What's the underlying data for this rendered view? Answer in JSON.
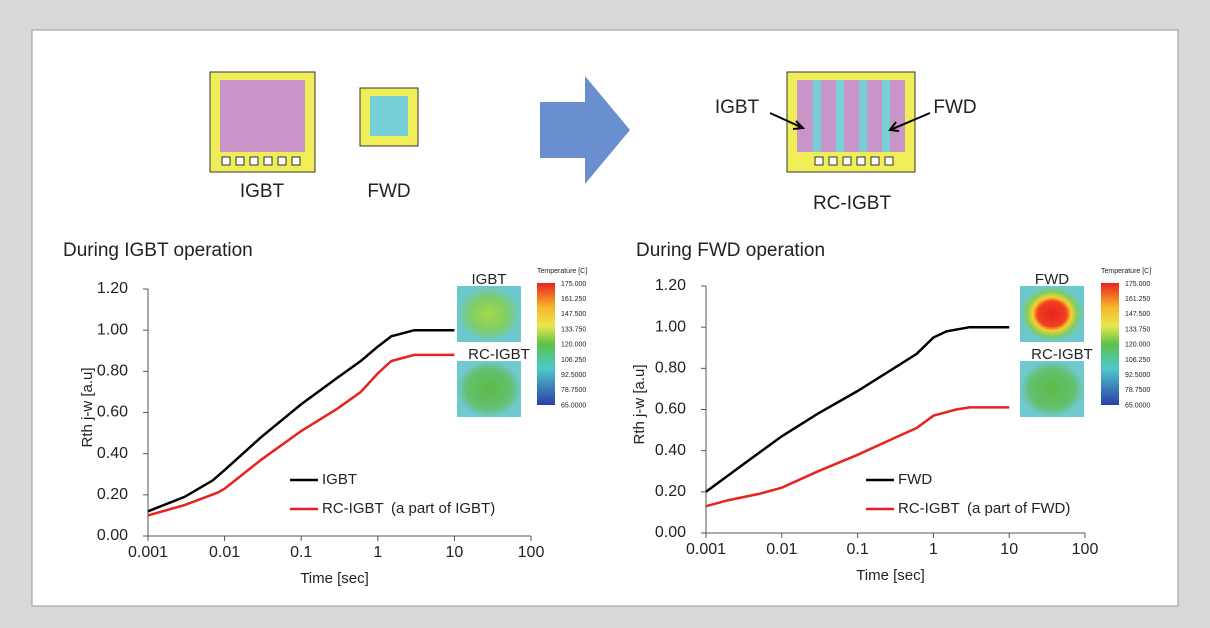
{
  "diagram": {
    "chips": [
      "IGBT",
      "FWD",
      "RC-IGBT"
    ],
    "pointers": [
      "IGBT",
      "FWD"
    ]
  },
  "colorbar": {
    "title": "Temperature [C]",
    "labels": [
      "175.000",
      "161.250",
      "147.500",
      "133.750",
      "120.000",
      "106.250",
      "92.5000",
      "78.7500",
      "65.0000"
    ]
  },
  "chart_data": [
    {
      "type": "line",
      "title": "During IGBT operation",
      "x_label": "Time [sec]",
      "y_label": "Rth j-w [a.u]",
      "log_x": true,
      "xlim": [
        0.001,
        100
      ],
      "xticks": [
        0.001,
        0.01,
        0.1,
        1,
        10,
        100
      ],
      "ylim": [
        0,
        1.2
      ],
      "yticks": [
        {
          "value": 0,
          "label": "0.00"
        },
        {
          "value": 0.2,
          "label": "0.20"
        },
        {
          "value": 0.4,
          "label": "0.40"
        },
        {
          "value": 0.6,
          "label": "0.60"
        },
        {
          "value": 0.8,
          "label": "0.80"
        },
        {
          "value": 1,
          "label": "1.00"
        },
        {
          "value": 1.2,
          "label": "1.20"
        }
      ],
      "thumbnails": [
        "IGBT",
        "RC-IGBT"
      ],
      "annotation": "(a part of IGBT)",
      "series": [
        {
          "name": "IGBT",
          "color": "#000000",
          "x": [
            0.001,
            0.003,
            0.007,
            0.01,
            0.03,
            0.1,
            0.3,
            0.6,
            1,
            1.5,
            3,
            10
          ],
          "values": [
            0.12,
            0.19,
            0.27,
            0.32,
            0.48,
            0.64,
            0.77,
            0.85,
            0.92,
            0.97,
            1.0,
            1.0
          ]
        },
        {
          "name": "RC-IGBT",
          "color": "#e8231f",
          "x": [
            0.001,
            0.003,
            0.008,
            0.01,
            0.03,
            0.1,
            0.3,
            0.6,
            1,
            1.5,
            3,
            10
          ],
          "values": [
            0.1,
            0.15,
            0.21,
            0.23,
            0.37,
            0.51,
            0.62,
            0.7,
            0.79,
            0.85,
            0.88,
            0.88
          ]
        }
      ]
    },
    {
      "type": "line",
      "title": "During FWD operation",
      "x_label": "Time [sec]",
      "y_label": "Rth j-w [a.u]",
      "log_x": true,
      "xlim": [
        0.001,
        100
      ],
      "xticks": [
        0.001,
        0.01,
        0.1,
        1,
        10,
        100
      ],
      "ylim": [
        0,
        1.2
      ],
      "yticks": [
        {
          "value": 0,
          "label": "0.00"
        },
        {
          "value": 0.2,
          "label": "0.20"
        },
        {
          "value": 0.4,
          "label": "0.40"
        },
        {
          "value": 0.6,
          "label": "0.60"
        },
        {
          "value": 0.8,
          "label": "0.80"
        },
        {
          "value": 1,
          "label": "1.00"
        },
        {
          "value": 1.2,
          "label": "1.20"
        }
      ],
      "thumbnails": [
        "FWD",
        "RC-IGBT"
      ],
      "annotation": "(a part of FWD)",
      "series": [
        {
          "name": "FWD",
          "color": "#000000",
          "x": [
            0.001,
            0.003,
            0.01,
            0.03,
            0.1,
            0.3,
            0.6,
            1,
            1.5,
            3,
            10
          ],
          "values": [
            0.2,
            0.33,
            0.47,
            0.58,
            0.69,
            0.8,
            0.87,
            0.95,
            0.98,
            1.0,
            1.0
          ]
        },
        {
          "name": "RC-IGBT",
          "color": "#e8231f",
          "x": [
            0.001,
            0.002,
            0.005,
            0.01,
            0.03,
            0.1,
            0.3,
            0.6,
            1,
            2,
            3,
            10
          ],
          "values": [
            0.13,
            0.16,
            0.19,
            0.22,
            0.3,
            0.38,
            0.46,
            0.51,
            0.57,
            0.6,
            0.61,
            0.61
          ]
        }
      ]
    }
  ]
}
